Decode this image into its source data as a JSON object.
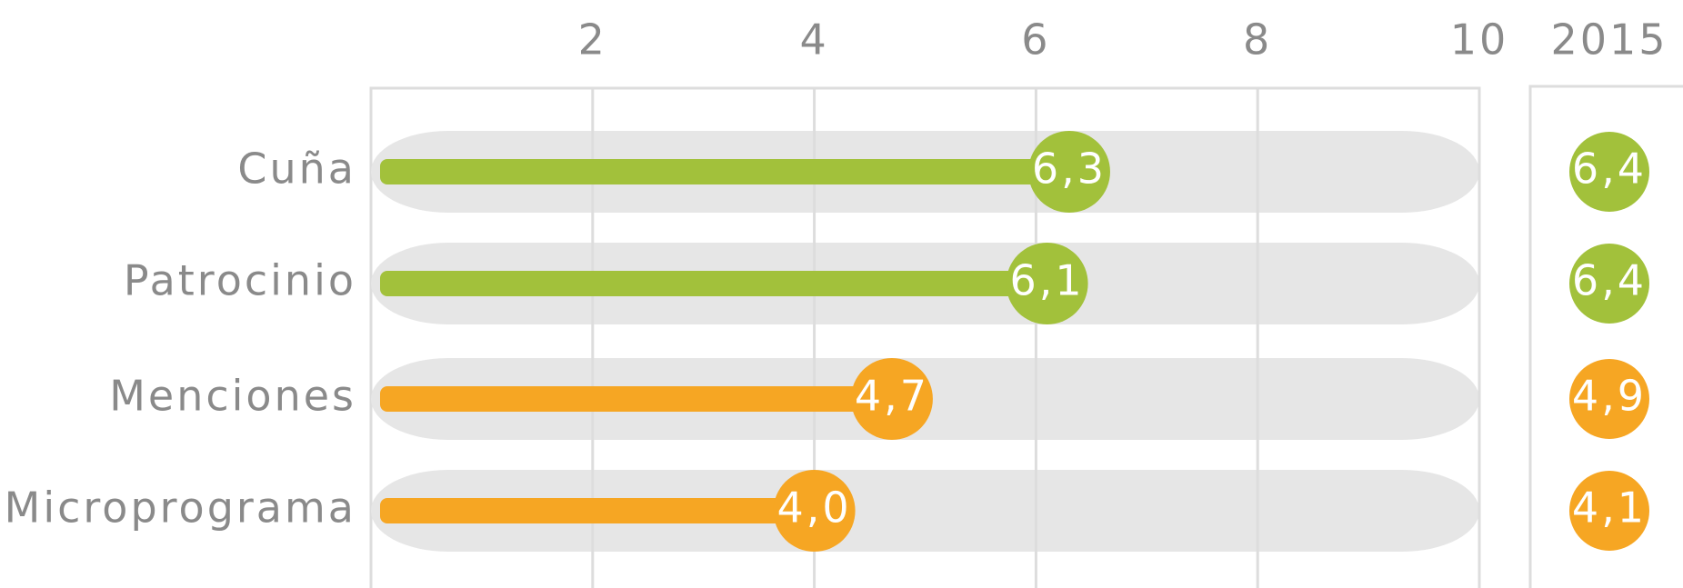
{
  "chart_data": {
    "type": "bar",
    "orientation": "horizontal",
    "categories": [
      "Cuña",
      "Patrocinio",
      "Menciones",
      "Microprograma"
    ],
    "values": [
      6.3,
      6.1,
      4.7,
      4.0
    ],
    "value_labels": [
      "6,3",
      "6,1",
      "4,7",
      "4,0"
    ],
    "colors": [
      "#a2c13b",
      "#a2c13b",
      "#f6a623",
      "#f6a623"
    ],
    "xlim": [
      0,
      10
    ],
    "xticks": [
      2,
      4,
      6,
      8,
      10
    ],
    "grid": true,
    "comparison": {
      "title": "2015",
      "values": [
        6.4,
        6.4,
        4.9,
        4.1
      ],
      "value_labels": [
        "6,4",
        "6,4",
        "4,9",
        "4,1"
      ],
      "colors": [
        "#a2c13b",
        "#a2c13b",
        "#f6a623",
        "#f6a623"
      ]
    }
  }
}
